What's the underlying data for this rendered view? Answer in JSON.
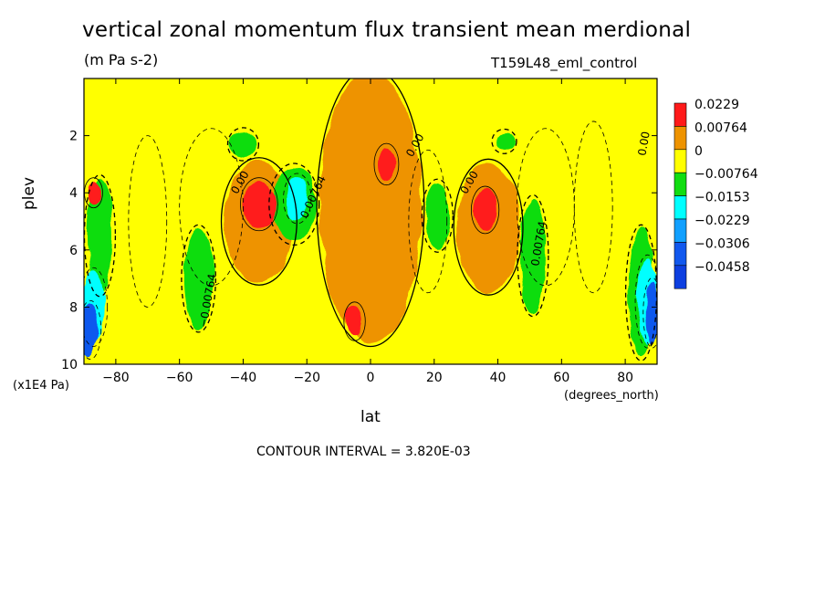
{
  "chart_data": {
    "type": "heatmap",
    "title": "vertical zonal momentum flux transient mean merdional",
    "units": "(m Pa s-2)",
    "run_label": "T159L48_eml_control",
    "xlabel": "lat",
    "x_units": "(degrees_north)",
    "ylabel": "plev",
    "y_units": "(x1E4 Pa)",
    "x_range": [
      -90,
      90
    ],
    "y_range": [
      10,
      0
    ],
    "x_ticks": [
      -80,
      -60,
      -40,
      -20,
      0,
      20,
      40,
      60,
      80
    ],
    "y_ticks": [
      2,
      4,
      6,
      8,
      10
    ],
    "contour_interval_label": "CONTOUR INTERVAL = 3.820E-03",
    "contour_labels": [
      {
        "text": "-0.00764",
        "lat": -50,
        "plev": 7.8,
        "rotate": -80
      },
      {
        "text": "0.00764",
        "lat": 54,
        "plev": 5.8,
        "rotate": -80
      },
      {
        "text": "0.00",
        "lat": -40,
        "plev": 3.7,
        "rotate": -60
      },
      {
        "text": "0.00",
        "lat": 32,
        "plev": 3.7,
        "rotate": -60
      },
      {
        "text": "0.00",
        "lat": 15,
        "plev": 2.4,
        "rotate": -60
      },
      {
        "text": "0.00",
        "lat": 87,
        "plev": 2.3,
        "rotate": -80
      },
      {
        "text": "0.00764",
        "lat": -17,
        "plev": 4.2,
        "rotate": -65
      }
    ],
    "colorbar": {
      "levels": [
        "0.0229",
        "0.00764",
        "0",
        "-0.00764",
        "-0.0153",
        "-0.0229",
        "-0.0306",
        "-0.0458"
      ],
      "colors": [
        "#ff1a1a",
        "#ee9300",
        "#ffff00",
        "#11dd11",
        "#00ffff",
        "#11a0ff",
        "#1158ee",
        "#0d3fe0"
      ]
    },
    "fill_colors": {
      "pos2": "#ff1a1a",
      "pos1": "#ee9300",
      "zero": "#ffff00",
      "neg1": "#11dd11",
      "neg2": "#00ffff",
      "neg3": "#11a0ff",
      "neg4": "#1158ee"
    },
    "features": [
      {
        "sign": "pos",
        "lat": -35,
        "plev": 4.4,
        "w": 5,
        "h": 1.6,
        "level": 2
      },
      {
        "sign": "pos",
        "lat": -35,
        "plev": 5.0,
        "w": 11,
        "h": 4.2,
        "level": 1
      },
      {
        "sign": "pos",
        "lat": 5,
        "plev": 3.0,
        "w": 3,
        "h": 1.2,
        "level": 2
      },
      {
        "sign": "pos",
        "lat": -5,
        "plev": 8.5,
        "w": 2.5,
        "h": 1.1,
        "level": 2
      },
      {
        "sign": "pos",
        "lat": 0,
        "plev": 4.5,
        "w": 16,
        "h": 9.5,
        "level": 1
      },
      {
        "sign": "pos",
        "lat": 36,
        "plev": 4.6,
        "w": 3.5,
        "h": 1.4,
        "level": 2
      },
      {
        "sign": "pos",
        "lat": 37,
        "plev": 5.2,
        "w": 10,
        "h": 4.5,
        "level": 1
      },
      {
        "sign": "pos",
        "lat": -87,
        "plev": 4.0,
        "w": 2,
        "h": 0.8,
        "level": 2
      },
      {
        "sign": "neg",
        "lat": -24,
        "plev": 4.4,
        "w": 7,
        "h": 2.6,
        "level": 1
      },
      {
        "sign": "neg",
        "lat": -23,
        "plev": 4.2,
        "w": 3.5,
        "h": 1.5,
        "level": 2
      },
      {
        "sign": "neg",
        "lat": -54,
        "plev": 7.0,
        "w": 4.5,
        "h": 3.5,
        "level": 1
      },
      {
        "sign": "neg",
        "lat": -40,
        "plev": 2.3,
        "w": 4,
        "h": 0.9,
        "level": 1
      },
      {
        "sign": "neg",
        "lat": 21,
        "plev": 4.8,
        "w": 4,
        "h": 2.3,
        "level": 1
      },
      {
        "sign": "neg",
        "lat": 51,
        "plev": 6.2,
        "w": 4,
        "h": 4.0,
        "level": 1
      },
      {
        "sign": "neg",
        "lat": 42,
        "plev": 2.2,
        "w": 3,
        "h": 0.6,
        "level": 1
      },
      {
        "sign": "neg",
        "lat": -85,
        "plev": 5.5,
        "w": 4,
        "h": 4.0,
        "level": 1
      },
      {
        "sign": "neg",
        "lat": -87,
        "plev": 8.0,
        "w": 3.5,
        "h": 2.5,
        "level": 2
      },
      {
        "sign": "neg",
        "lat": -88,
        "plev": 8.8,
        "w": 2.5,
        "h": 1.8,
        "level": 4
      },
      {
        "sign": "neg",
        "lat": 85,
        "plev": 7.5,
        "w": 4,
        "h": 4.5,
        "level": 1
      },
      {
        "sign": "neg",
        "lat": 87,
        "plev": 7.8,
        "w": 3,
        "h": 3.0,
        "level": 2
      },
      {
        "sign": "neg",
        "lat": 88.5,
        "plev": 8.2,
        "w": 2,
        "h": 2.2,
        "level": 4
      }
    ]
  }
}
